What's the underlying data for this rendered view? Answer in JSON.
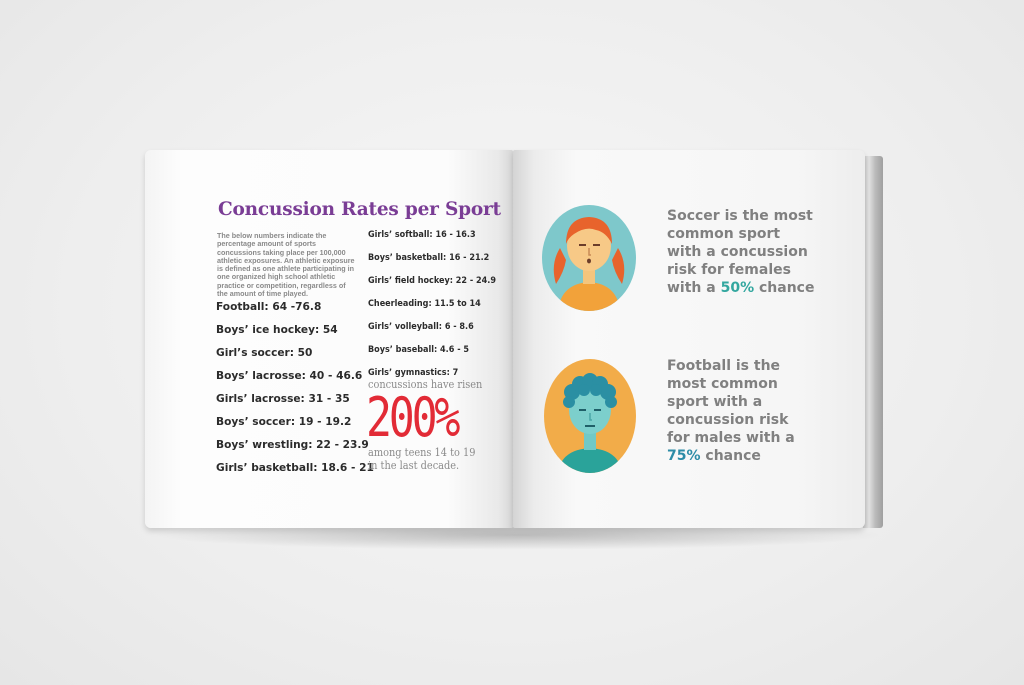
{
  "left_page": {
    "title": "Concussion Rates per Sport",
    "intro": "The below numbers indicate the percentage amount of sports concussions taking place per 100,000 athletic exposures. An athletic exposure is defined as one athlete participating in one organized high school athletic practice or competition, regardless of the amount of time played.",
    "rates_col1": [
      "Football: 64 -76.8",
      "Boys’ ice hockey: 54",
      "Girl’s soccer: 50",
      "Boys’ lacrosse: 40 - 46.6",
      "Girls’ lacrosse: 31 - 35",
      "Boys’ soccer: 19 - 19.2",
      "Boys’ wrestling: 22 - 23.9",
      "Girls’ basketball: 18.6 - 21"
    ],
    "rates_col2": [
      "Girls’ softball: 16 - 16.3",
      "Boys’ basketball: 16 - 21.2",
      "Girls’ field hockey: 22 - 24.9",
      "Cheerleading: 11.5 to 14",
      "Girls’ volleyball: 6 - 8.6",
      "Boys’ baseball: 4.6 - 5",
      "Girls’ gymnastics: 7"
    ],
    "stat": {
      "before": "concussions have risen",
      "value": "200%",
      "after_line1": "among teens 14 to 19",
      "after_line2": "in the last decade."
    }
  },
  "right_page": {
    "female_fact": {
      "lines": [
        "Soccer is the most",
        "common sport",
        "with a concussion",
        "risk for females"
      ],
      "pre": "with a ",
      "highlight": "50%",
      "post": " chance"
    },
    "male_fact": {
      "lines": [
        "Football is the",
        "most common",
        "sport with a",
        "concussion risk",
        "for males with a"
      ],
      "highlight": "75%",
      "post": " chance"
    }
  },
  "colors": {
    "title": "#7a3d95",
    "stat_red": "#e22b36",
    "female_highlight": "#33a79f",
    "male_highlight": "#2d8ca7",
    "female_circle": "#7ec8cb",
    "male_circle": "#f2ac49"
  },
  "icons": [
    "female-avatar-icon",
    "male-avatar-icon"
  ]
}
